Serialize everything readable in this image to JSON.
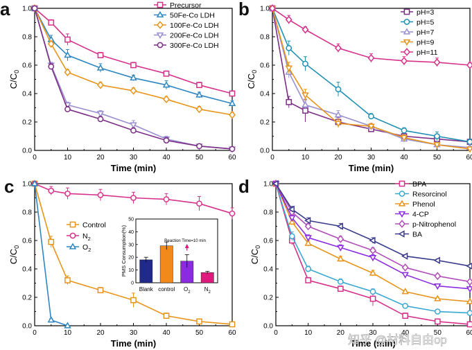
{
  "chart_data": [
    {
      "panel": "a",
      "type": "line",
      "xlabel": "Time (min)",
      "ylabel": "C/C",
      "ylabel_sub": "0",
      "xlim": [
        0,
        60
      ],
      "ylim": [
        0,
        1.0
      ],
      "xticks": [
        0,
        10,
        20,
        30,
        40,
        50,
        60
      ],
      "yticks": [
        0,
        0.2,
        0.4,
        0.6,
        0.8,
        1.0
      ],
      "ytick_labels": [
        "0.0",
        "0.2",
        "0.4",
        "0.6",
        "0.8",
        "1.0"
      ],
      "legend_position": "top-right",
      "series": [
        {
          "name": "Precursor",
          "color": "#d6318a",
          "marker": "square",
          "x": [
            0,
            5,
            10,
            20,
            30,
            40,
            50,
            60
          ],
          "y": [
            1.0,
            0.9,
            0.78,
            0.67,
            0.6,
            0.54,
            0.46,
            0.4
          ],
          "err": [
            0,
            0.02,
            0.04,
            0.02,
            0.02,
            0.02,
            0.02,
            0.02
          ]
        },
        {
          "name": "50Fe-Co LDH",
          "color": "#2e86c1",
          "marker": "triangle-up",
          "x": [
            0,
            5,
            10,
            20,
            30,
            40,
            50,
            60
          ],
          "y": [
            1.0,
            0.78,
            0.67,
            0.58,
            0.51,
            0.46,
            0.39,
            0.33
          ],
          "err": [
            0,
            0.03,
            0.04,
            0.03,
            0.02,
            0.03,
            0.02,
            0.02
          ]
        },
        {
          "name": "100Fe-Co LDH",
          "color": "#e8941a",
          "marker": "diamond",
          "x": [
            0,
            5,
            10,
            20,
            30,
            40,
            50,
            60
          ],
          "y": [
            1.0,
            0.75,
            0.55,
            0.46,
            0.42,
            0.36,
            0.29,
            0.25
          ],
          "err": [
            0,
            0.02,
            0.02,
            0.02,
            0.02,
            0.02,
            0.02,
            0.02
          ]
        },
        {
          "name": "200Fe-Co LDH",
          "color": "#9a8fd0",
          "marker": "triangle-down",
          "x": [
            0,
            5,
            10,
            20,
            30,
            40,
            50,
            60
          ],
          "y": [
            1.0,
            0.6,
            0.32,
            0.26,
            0.18,
            0.08,
            0.03,
            0.01
          ],
          "err": [
            0,
            0.02,
            0.02,
            0.02,
            0.03,
            0.02,
            0.01,
            0.01
          ]
        },
        {
          "name": "300Fe-Co LDH",
          "color": "#7b2d86",
          "marker": "circle",
          "x": [
            0,
            5,
            10,
            20,
            30,
            40,
            50,
            60
          ],
          "y": [
            1.0,
            0.59,
            0.29,
            0.22,
            0.14,
            0.07,
            0.03,
            0.01
          ],
          "err": [
            0,
            0.02,
            0.02,
            0.02,
            0.02,
            0.02,
            0.01,
            0.01
          ]
        }
      ]
    },
    {
      "panel": "b",
      "type": "line",
      "xlabel": "Time (min)",
      "ylabel": "C/C",
      "ylabel_sub": "0",
      "xlim": [
        0,
        60
      ],
      "ylim": [
        0,
        1.0
      ],
      "xticks": [
        0,
        10,
        20,
        30,
        40,
        50,
        60
      ],
      "yticks": [
        0,
        0.2,
        0.4,
        0.6,
        0.8,
        1.0
      ],
      "ytick_labels": [
        "0.0",
        "0.2",
        "0.4",
        "0.6",
        "0.8",
        "1.0"
      ],
      "legend_position": "top-right",
      "series": [
        {
          "name": "pH=3",
          "color": "#7b2d86",
          "marker": "square",
          "x": [
            0,
            5,
            10,
            20,
            30,
            40,
            50,
            60
          ],
          "y": [
            1.0,
            0.34,
            0.28,
            0.2,
            0.15,
            0.1,
            0.08,
            0.06
          ],
          "err": [
            0,
            0.04,
            0.08,
            0.03,
            0.02,
            0.02,
            0.02,
            0.01
          ]
        },
        {
          "name": "pH=5",
          "color": "#1f8fb4",
          "marker": "circle",
          "x": [
            0,
            5,
            10,
            20,
            30,
            40,
            50,
            60
          ],
          "y": [
            1.0,
            0.72,
            0.61,
            0.43,
            0.24,
            0.14,
            0.1,
            0.06
          ],
          "err": [
            0,
            0.05,
            0.05,
            0.05,
            0.02,
            0.02,
            0.03,
            0.02
          ]
        },
        {
          "name": "pH=7",
          "color": "#9a8fd0",
          "marker": "triangle-up",
          "x": [
            0,
            5,
            10,
            20,
            30,
            40,
            50,
            60
          ],
          "y": [
            1.0,
            0.55,
            0.32,
            0.25,
            0.17,
            0.08,
            0.04,
            0.02
          ],
          "err": [
            0,
            0.04,
            0.03,
            0.03,
            0.02,
            0.02,
            0.01,
            0.01
          ]
        },
        {
          "name": "pH=9",
          "color": "#e8941a",
          "marker": "triangle-down",
          "x": [
            0,
            5,
            10,
            20,
            30,
            40,
            50,
            60
          ],
          "y": [
            1.0,
            0.58,
            0.39,
            0.19,
            0.17,
            0.09,
            0.04,
            0.01
          ],
          "err": [
            0,
            0.04,
            0.04,
            0.03,
            0.02,
            0.02,
            0.01,
            0.01
          ]
        },
        {
          "name": "pH=11",
          "color": "#d6318a",
          "marker": "diamond",
          "x": [
            0,
            5,
            10,
            20,
            30,
            40,
            50,
            60
          ],
          "y": [
            1.0,
            0.92,
            0.85,
            0.72,
            0.65,
            0.63,
            0.62,
            0.6
          ],
          "err": [
            0,
            0.03,
            0.02,
            0.03,
            0.03,
            0.03,
            0.03,
            0.02
          ]
        }
      ]
    },
    {
      "panel": "c",
      "type": "line",
      "xlabel": "Time (min)",
      "ylabel": "C/C",
      "ylabel_sub": "0",
      "xlim": [
        0,
        60
      ],
      "ylim": [
        0,
        1.0
      ],
      "xticks": [
        0,
        10,
        20,
        30,
        40,
        50,
        60
      ],
      "yticks": [
        0,
        0.2,
        0.4,
        0.6,
        0.8,
        1.0
      ],
      "ytick_labels": [
        "0.0",
        "0.2",
        "0.4",
        "0.6",
        "0.8",
        "1.0"
      ],
      "legend_position": "middle-left",
      "series": [
        {
          "name": "Control",
          "color": "#e8941a",
          "marker": "square",
          "x": [
            0,
            5,
            10,
            20,
            30,
            40,
            50,
            60
          ],
          "y": [
            1.0,
            0.59,
            0.32,
            0.25,
            0.18,
            0.07,
            0.03,
            0.01
          ],
          "err": [
            0,
            0.04,
            0.03,
            0.02,
            0.05,
            0.02,
            0.01,
            0.01
          ]
        },
        {
          "name": "N",
          "name_sub": "2",
          "color": "#d6318a",
          "marker": "circle",
          "x": [
            0,
            5,
            10,
            20,
            30,
            40,
            50,
            60
          ],
          "y": [
            1.0,
            0.95,
            0.93,
            0.92,
            0.9,
            0.89,
            0.86,
            0.79
          ],
          "err": [
            0,
            0.03,
            0.04,
            0.04,
            0.04,
            0.04,
            0.05,
            0.04
          ]
        },
        {
          "name": "O",
          "name_sub": "2",
          "color": "#2e86c1",
          "marker": "triangle-up",
          "x": [
            0,
            5,
            10
          ],
          "y": [
            1.0,
            0.04,
            0.0
          ],
          "err": [
            0,
            0.01,
            0
          ]
        }
      ],
      "inset": {
        "type": "bar",
        "ylabel": "PMS Consumption(%)",
        "ylim": [
          0,
          50
        ],
        "yticks": [
          0,
          10,
          20,
          30,
          40,
          50
        ],
        "annotation": "Reaction Time=10 min",
        "bars": [
          {
            "label": "Blank",
            "value": 18,
            "err": 2,
            "color": "#1f2a8c"
          },
          {
            "label": "control",
            "value": 29,
            "err": 3,
            "color": "#f28a1b"
          },
          {
            "label": "O",
            "label_sub": "2",
            "value": 17,
            "err": 5,
            "color": "#8a2be2"
          },
          {
            "label": "N",
            "label_sub": "2",
            "value": 8,
            "err": 1,
            "color": "#e0197d"
          }
        ]
      }
    },
    {
      "panel": "d",
      "type": "line",
      "xlabel": "Time (min)",
      "ylabel": "C/C",
      "ylabel_sub": "0",
      "xlim": [
        0,
        60
      ],
      "ylim": [
        0,
        1.0
      ],
      "xticks": [
        0,
        10,
        20,
        30,
        40,
        50,
        60
      ],
      "yticks": [
        0,
        0.2,
        0.4,
        0.6,
        0.8,
        1.0
      ],
      "ytick_labels": [
        "0.0",
        "0.2",
        "0.4",
        "0.6",
        "0.8",
        "1.0"
      ],
      "legend_position": "top-right",
      "series": [
        {
          "name": "BPA",
          "color": "#d6318a",
          "marker": "square",
          "x": [
            0,
            5,
            10,
            20,
            30,
            40,
            50,
            60
          ],
          "y": [
            1.0,
            0.6,
            0.32,
            0.26,
            0.19,
            0.07,
            0.03,
            0.01
          ],
          "err": [
            0,
            0.03,
            0.02,
            0.02,
            0.05,
            0.02,
            0.01,
            0.01
          ]
        },
        {
          "name": "Resorcinol",
          "color": "#3aa8d0",
          "marker": "circle",
          "x": [
            0,
            5,
            10,
            20,
            30,
            40,
            50,
            60
          ],
          "y": [
            1.0,
            0.63,
            0.4,
            0.31,
            0.24,
            0.14,
            0.1,
            0.09
          ],
          "err": [
            0,
            0.03,
            0.02,
            0.02,
            0.02,
            0.01,
            0.01,
            0.01
          ]
        },
        {
          "name": "Phenol",
          "color": "#e8941a",
          "marker": "triangle-up",
          "x": [
            0,
            5,
            10,
            20,
            30,
            40,
            50,
            60
          ],
          "y": [
            1.0,
            0.73,
            0.58,
            0.47,
            0.37,
            0.24,
            0.19,
            0.17
          ],
          "err": [
            0,
            0.02,
            0.02,
            0.02,
            0.02,
            0.01,
            0.01,
            0.01
          ]
        },
        {
          "name": "4-CP",
          "color": "#8a2be2",
          "marker": "triangle-down",
          "x": [
            0,
            5,
            10,
            20,
            30,
            40,
            50,
            60
          ],
          "y": [
            1.0,
            0.76,
            0.62,
            0.55,
            0.48,
            0.36,
            0.28,
            0.26
          ],
          "err": [
            0,
            0.02,
            0.02,
            0.02,
            0.02,
            0.01,
            0.01,
            0.01
          ]
        },
        {
          "name": "p-Nitrophenol",
          "color": "#b04cb8",
          "marker": "diamond",
          "x": [
            0,
            5,
            10,
            20,
            30,
            40,
            50,
            60
          ],
          "y": [
            1.0,
            0.8,
            0.7,
            0.61,
            0.53,
            0.41,
            0.35,
            0.31
          ],
          "err": [
            0,
            0.02,
            0.02,
            0.02,
            0.02,
            0.01,
            0.01,
            0.01
          ]
        },
        {
          "name": "BA",
          "color": "#3a3a8c",
          "marker": "triangle-left",
          "x": [
            0,
            5,
            10,
            20,
            30,
            40,
            50,
            60
          ],
          "y": [
            1.0,
            0.82,
            0.74,
            0.7,
            0.6,
            0.49,
            0.46,
            0.42
          ],
          "err": [
            0,
            0.02,
            0.02,
            0.02,
            0.02,
            0.01,
            0.01,
            0.01
          ]
        }
      ]
    }
  ],
  "watermark": "知乎 @材料自由op"
}
